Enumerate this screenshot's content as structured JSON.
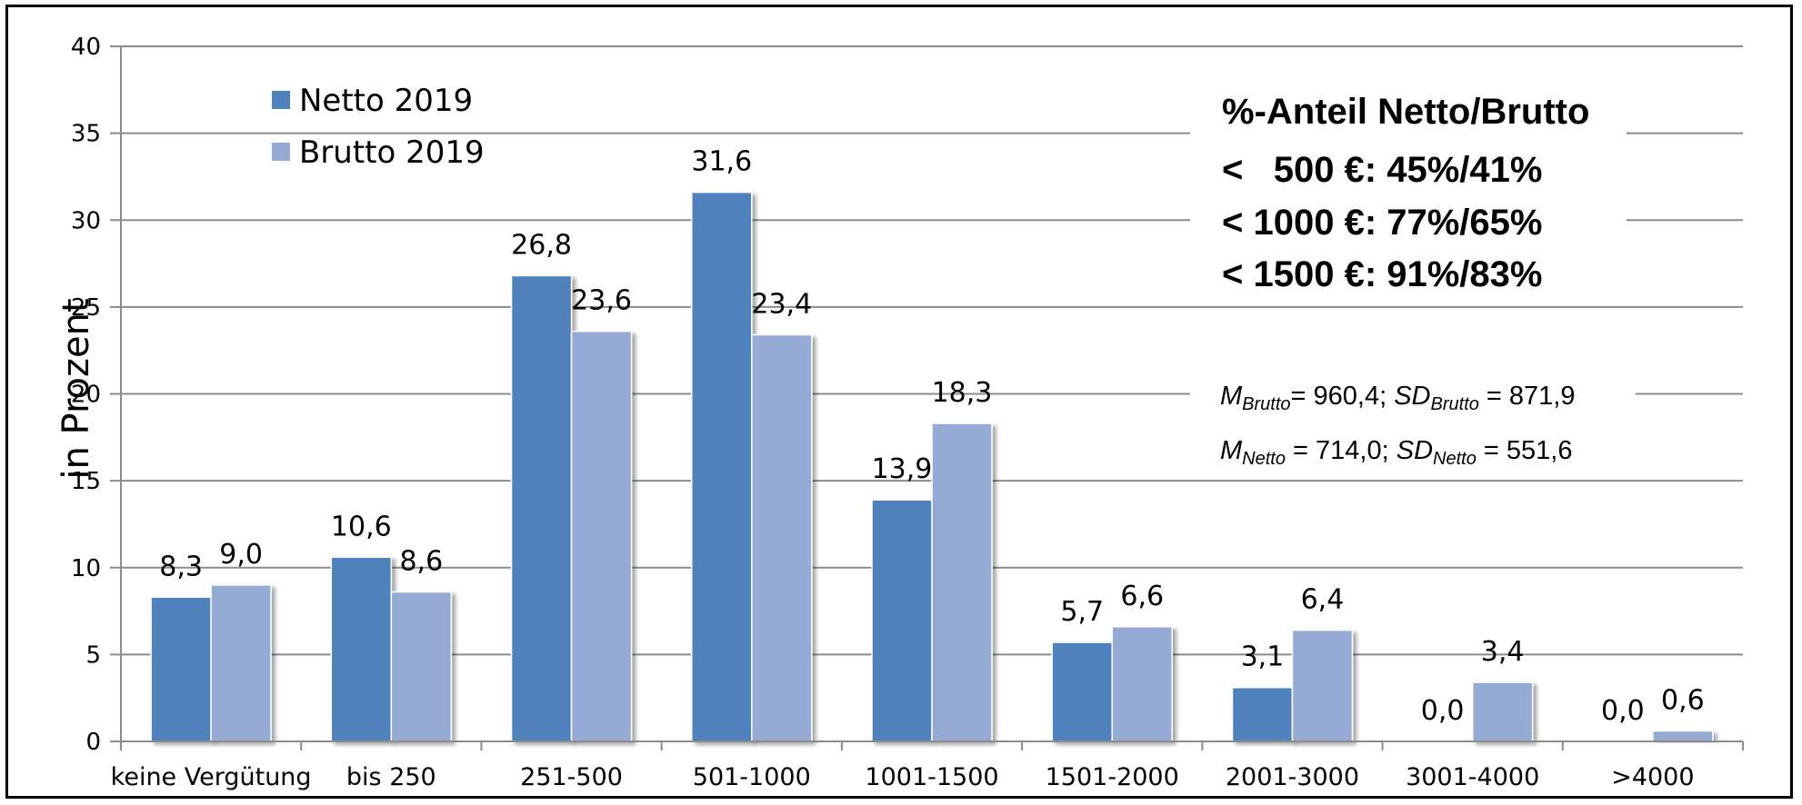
{
  "chart_data": {
    "type": "bar",
    "ylabel": "in Prozent",
    "xlabel": "",
    "ylim": [
      0,
      40
    ],
    "yticks": [
      0,
      5,
      10,
      15,
      20,
      25,
      30,
      35,
      40
    ],
    "grid": "horizontal",
    "legend": "top-left",
    "categories": [
      "keine Vergütung",
      "bis 250",
      "251-500",
      "501-1000",
      "1001-1500",
      "1501-2000",
      "2001-3000",
      "3001-4000",
      ">4000"
    ],
    "series": [
      {
        "name": "Netto 2019",
        "color": "#4f81bd",
        "values": [
          8.3,
          10.6,
          26.8,
          31.6,
          13.9,
          5.7,
          3.1,
          0.0,
          0.0
        ],
        "labels": [
          "8,3",
          "10,6",
          "26,8",
          "31,6",
          "13,9",
          "5,7",
          "3,1",
          "0,0",
          "0,0"
        ]
      },
      {
        "name": "Brutto 2019",
        "color": "#95abd5",
        "values": [
          9.0,
          8.6,
          23.6,
          23.4,
          18.3,
          6.6,
          6.4,
          3.4,
          0.6
        ],
        "labels": [
          "9,0",
          "8,6",
          "23,6",
          "23,4",
          "18,3",
          "6,6",
          "6,4",
          "3,4",
          "0,6"
        ]
      }
    ],
    "annotations": {
      "share_title": "%-Anteil Netto/Brutto",
      "share_lines": [
        "<   500 €: 45%/41%",
        "< 1000 €: 77%/65%",
        "< 1500 €: 91%/83%"
      ],
      "stats": {
        "m_letter": "M",
        "sd_letters": "SD",
        "brutto_sub": "Brutto",
        "netto_sub": "Netto",
        "brutto_m_rest": "= 960,4; ",
        "brutto_sd_rest": " = 871,9",
        "netto_m_rest": " = 714,0; ",
        "netto_sd_rest": " = 551,6"
      }
    }
  }
}
